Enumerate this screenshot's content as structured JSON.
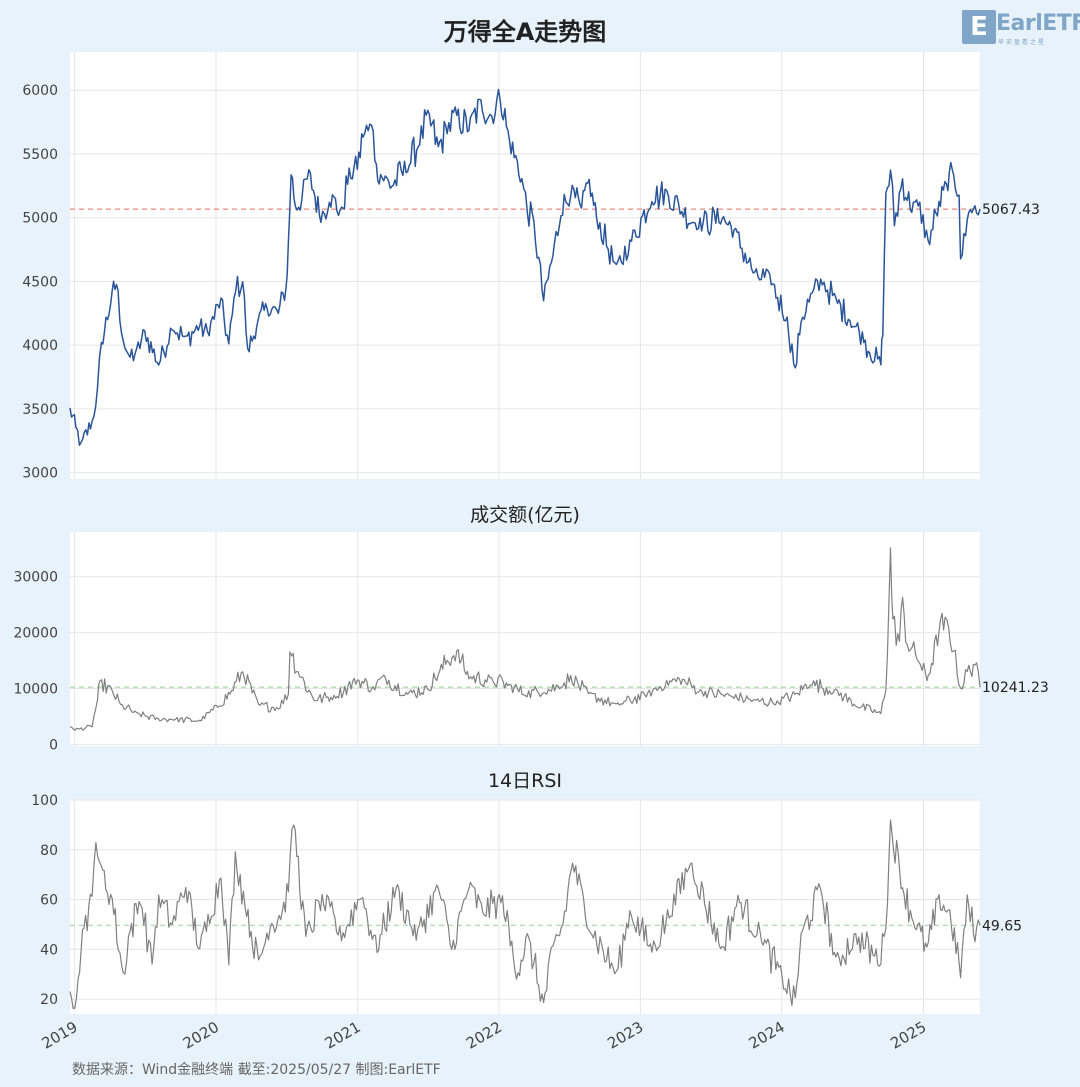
{
  "title": "万得全A走势图",
  "logo": {
    "mark": "E",
    "text": "EarlETF",
    "tagline": "早安盈看之星"
  },
  "footer": "数据来源：Wind金融终端 截至:2025/05/27 制图:EarlETF",
  "x_axis": {
    "range": [
      "2018-12-20",
      "2025-05-27"
    ],
    "ticks": [
      "2019",
      "2020",
      "2021",
      "2022",
      "2023",
      "2024",
      "2025"
    ]
  },
  "colors": {
    "background": "#e8f2fa",
    "price_line": "#2a5599",
    "volume_line": "#808080",
    "rsi_line": "#808080",
    "price_ref": "#e8887a",
    "green_ref": "#a7d7a7"
  },
  "chart_data": [
    {
      "type": "line",
      "title": "万得全A走势图",
      "ylim": [
        2950,
        6300
      ],
      "yticks": [
        3000,
        3500,
        4000,
        4500,
        5000,
        5500,
        6000
      ],
      "grid": true,
      "reference_line": {
        "value": 5067.43,
        "label": "5067.43",
        "style": "dashed"
      },
      "x": [
        "2018-12-20",
        "2019-01-04",
        "2019-01-18",
        "2019-02-15",
        "2019-03-01",
        "2019-03-11",
        "2019-04-08",
        "2019-04-19",
        "2019-05-06",
        "2019-05-20",
        "2019-06-10",
        "2019-07-01",
        "2019-08-06",
        "2019-09-10",
        "2019-10-15",
        "2019-11-20",
        "2019-12-10",
        "2020-01-14",
        "2020-02-03",
        "2020-02-21",
        "2020-03-10",
        "2020-03-23",
        "2020-04-15",
        "2020-05-12",
        "2020-06-10",
        "2020-06-30",
        "2020-07-06",
        "2020-07-13",
        "2020-07-24",
        "2020-08-10",
        "2020-08-28",
        "2020-09-28",
        "2020-10-20",
        "2020-11-20",
        "2020-12-10",
        "2020-12-31",
        "2021-01-15",
        "2021-02-10",
        "2021-02-18",
        "2021-03-09",
        "2021-03-30",
        "2021-05-10",
        "2021-06-10",
        "2021-07-01",
        "2021-07-28",
        "2021-08-20",
        "2021-09-14",
        "2021-10-15",
        "2021-11-15",
        "2021-12-13",
        "2022-01-04",
        "2022-01-28",
        "2022-03-01",
        "2022-03-15",
        "2022-04-01",
        "2022-04-26",
        "2022-05-20",
        "2022-06-10",
        "2022-07-05",
        "2022-08-02",
        "2022-08-18",
        "2022-09-10",
        "2022-10-31",
        "2022-12-05",
        "2023-01-31",
        "2023-03-10",
        "2023-04-18",
        "2023-05-31",
        "2023-07-31",
        "2023-08-31",
        "2023-10-23",
        "2023-12-05",
        "2024-01-15",
        "2024-02-05",
        "2024-02-20",
        "2024-03-20",
        "2024-04-15",
        "2024-05-20",
        "2024-06-25",
        "2024-07-31",
        "2024-08-15",
        "2024-09-13",
        "2024-09-18",
        "2024-09-26",
        "2024-10-08",
        "2024-10-18",
        "2024-11-08",
        "2024-11-20",
        "2024-12-10",
        "2024-12-31",
        "2025-01-13",
        "2025-02-10",
        "2025-03-05",
        "2025-03-20",
        "2025-04-03",
        "2025-04-07",
        "2025-04-24",
        "2025-05-14",
        "2025-05-27"
      ],
      "series": [
        {
          "values": [
            3500,
            3350,
            3220,
            3400,
            3650,
            4000,
            4400,
            4480,
            4050,
            3900,
            3950,
            4100,
            3850,
            4150,
            4050,
            4150,
            4100,
            4350,
            4000,
            4450,
            4500,
            3950,
            4150,
            4300,
            4250,
            4450,
            4800,
            5350,
            5100,
            5150,
            5350,
            5000,
            5150,
            5050,
            5350,
            5400,
            5650,
            5700,
            5400,
            5300,
            5250,
            5400,
            5600,
            5800,
            5550,
            5700,
            5800,
            5700,
            5900,
            5800,
            5950,
            5600,
            5300,
            5050,
            4950,
            4350,
            4700,
            5050,
            5200,
            5050,
            5300,
            5000,
            4600,
            4800,
            5150,
            5200,
            5050,
            4950,
            5000,
            4900,
            4550,
            4500,
            4200,
            3800,
            4200,
            4400,
            4500,
            4350,
            4200,
            4050,
            3950,
            3850,
            4100,
            5200,
            5350,
            4950,
            5300,
            5150,
            5100,
            5000,
            4800,
            5100,
            5250,
            5350,
            5200,
            4650,
            5000,
            5100,
            5067.43
          ]
        }
      ]
    },
    {
      "type": "line",
      "title": "成交额(亿元)",
      "ylim": [
        -300,
        38000
      ],
      "yticks": [
        0,
        10000,
        20000,
        30000
      ],
      "grid": true,
      "reference_line": {
        "value": 10241.23,
        "label": "10241.23",
        "style": "dashed"
      },
      "x": [
        "2018-12-20",
        "2019-01-10",
        "2019-02-15",
        "2019-03-01",
        "2019-03-08",
        "2019-04-08",
        "2019-04-30",
        "2019-06-10",
        "2019-08-05",
        "2019-09-10",
        "2019-11-20",
        "2020-01-10",
        "2020-02-10",
        "2020-03-10",
        "2020-04-20",
        "2020-06-10",
        "2020-07-06",
        "2020-07-10",
        "2020-07-31",
        "2020-09-10",
        "2020-11-01",
        "2020-12-31",
        "2021-02-10",
        "2021-03-10",
        "2021-05-10",
        "2021-07-01",
        "2021-08-01",
        "2021-08-20",
        "2021-09-14",
        "2021-10-15",
        "2021-12-13",
        "2022-01-28",
        "2022-03-10",
        "2022-04-26",
        "2022-06-10",
        "2022-07-05",
        "2022-08-20",
        "2022-10-31",
        "2023-01-20",
        "2023-03-10",
        "2023-04-20",
        "2023-06-01",
        "2023-08-31",
        "2023-10-23",
        "2023-12-20",
        "2024-02-08",
        "2024-03-15",
        "2024-05-20",
        "2024-07-10",
        "2024-09-13",
        "2024-09-26",
        "2024-10-08",
        "2024-10-14",
        "2024-10-31",
        "2024-11-08",
        "2024-11-20",
        "2024-12-20",
        "2025-01-10",
        "2025-02-10",
        "2025-02-26",
        "2025-03-20",
        "2025-04-07",
        "2025-04-24",
        "2025-05-14",
        "2025-05-27"
      ],
      "series": [
        {
          "values": [
            3000,
            2700,
            3200,
            8000,
            11000,
            9500,
            7000,
            5500,
            4500,
            4500,
            4200,
            7000,
            9500,
            13000,
            7000,
            6500,
            9000,
            17000,
            13000,
            8000,
            8500,
            11500,
            10000,
            12000,
            9000,
            10000,
            13000,
            15000,
            16500,
            12000,
            11500,
            10500,
            9000,
            9500,
            10500,
            12000,
            9000,
            7000,
            9000,
            11000,
            11500,
            9500,
            8500,
            7800,
            7500,
            9000,
            11000,
            9500,
            7000,
            5500,
            10000,
            34500,
            22000,
            18500,
            25500,
            18000,
            15000,
            11500,
            20000,
            22000,
            17000,
            10000,
            13000,
            14500,
            10241.23
          ]
        }
      ]
    },
    {
      "type": "line",
      "title": "14日RSI",
      "ylim": [
        14,
        100
      ],
      "yticks": [
        20,
        40,
        60,
        80,
        100
      ],
      "grid": true,
      "reference_line": {
        "value": 49.65,
        "label": "49.65",
        "style": "dashed"
      },
      "x": [
        "2018-12-20",
        "2018-12-28",
        "2019-01-10",
        "2019-01-25",
        "2019-02-15",
        "2019-02-25",
        "2019-03-10",
        "2019-04-08",
        "2019-05-06",
        "2019-05-20",
        "2019-06-20",
        "2019-07-20",
        "2019-08-06",
        "2019-09-10",
        "2019-10-15",
        "2019-11-20",
        "2019-12-20",
        "2020-01-14",
        "2020-02-03",
        "2020-02-20",
        "2020-03-20",
        "2020-04-20",
        "2020-05-20",
        "2020-06-20",
        "2020-07-06",
        "2020-07-20",
        "2020-08-20",
        "2020-10-01",
        "2020-11-20",
        "2021-01-10",
        "2021-02-20",
        "2021-04-10",
        "2021-06-01",
        "2021-07-28",
        "2021-09-01",
        "2021-10-15",
        "2021-11-20",
        "2022-01-10",
        "2022-02-15",
        "2022-03-15",
        "2022-04-26",
        "2022-05-20",
        "2022-06-15",
        "2022-07-10",
        "2022-08-20",
        "2022-10-31",
        "2022-12-05",
        "2023-01-31",
        "2023-03-20",
        "2023-05-10",
        "2023-07-31",
        "2023-09-10",
        "2023-11-10",
        "2024-01-10",
        "2024-02-05",
        "2024-02-20",
        "2024-04-10",
        "2024-05-20",
        "2024-07-10",
        "2024-09-13",
        "2024-09-30",
        "2024-10-08",
        "2024-11-08",
        "2024-12-10",
        "2025-01-10",
        "2025-02-10",
        "2025-03-10",
        "2025-04-07",
        "2025-04-24",
        "2025-05-14",
        "2025-05-27"
      ],
      "series": [
        {
          "values": [
            22,
            18,
            30,
            50,
            60,
            85,
            72,
            60,
            30,
            45,
            60,
            35,
            60,
            50,
            65,
            40,
            55,
            70,
            35,
            78,
            55,
            35,
            50,
            55,
            65,
            91,
            45,
            60,
            45,
            62,
            40,
            65,
            45,
            65,
            40,
            65,
            55,
            60,
            30,
            45,
            18,
            40,
            50,
            75,
            50,
            30,
            55,
            40,
            55,
            75,
            40,
            60,
            45,
            25,
            20,
            45,
            65,
            35,
            45,
            35,
            60,
            91,
            65,
            50,
            40,
            60,
            55,
            30,
            60,
            45,
            49.65
          ]
        }
      ]
    }
  ]
}
